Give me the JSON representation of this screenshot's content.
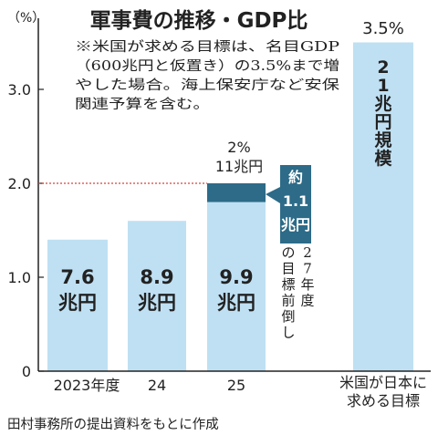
{
  "chart_data": {
    "type": "bar",
    "title": "軍事費の推移・GDP比",
    "unit_label": "（%）",
    "note_lines": [
      "※米国が求める目標は、名目GDP",
      "（600兆円と仮置き）の3.5%まで増",
      "やした場合。海上保安庁など安保",
      "関連予算を含む。"
    ],
    "ylim": [
      0,
      3.5
    ],
    "yticks": [
      "0",
      "1.0",
      "2.0",
      "3.0"
    ],
    "categories": [
      "2023年度",
      "24",
      "25"
    ],
    "values": [
      1.4,
      1.6,
      1.8
    ],
    "bar_labels": [
      [
        "7.6",
        "兆円"
      ],
      [
        "8.9",
        "兆円"
      ],
      [
        "9.9",
        "兆円"
      ]
    ],
    "increment": {
      "base": 1.8,
      "top": 2.0,
      "label": [
        "約",
        "1.1",
        "兆円"
      ],
      "note_chars": [
        "2",
        "7",
        "年",
        "度",
        "の",
        "目",
        "標",
        "前",
        "倒",
        "し"
      ]
    },
    "reference_line": {
      "value": 2.0,
      "label_top": "2%",
      "label_bottom": "11兆円"
    },
    "target": {
      "category_lines": [
        "米国が日本に",
        "求める目標"
      ],
      "value": 3.5,
      "value_label": "3.5%",
      "inner_label": [
        "2",
        "1",
        "兆",
        "円",
        "規",
        "模"
      ]
    },
    "source": "田村事務所の提出資料をもとに作成",
    "colors": {
      "bar": "#bfe0f3",
      "increment": "#2d6b88",
      "reference_line": "#d0453c",
      "text": "#222222",
      "white": "#ffffff"
    }
  }
}
